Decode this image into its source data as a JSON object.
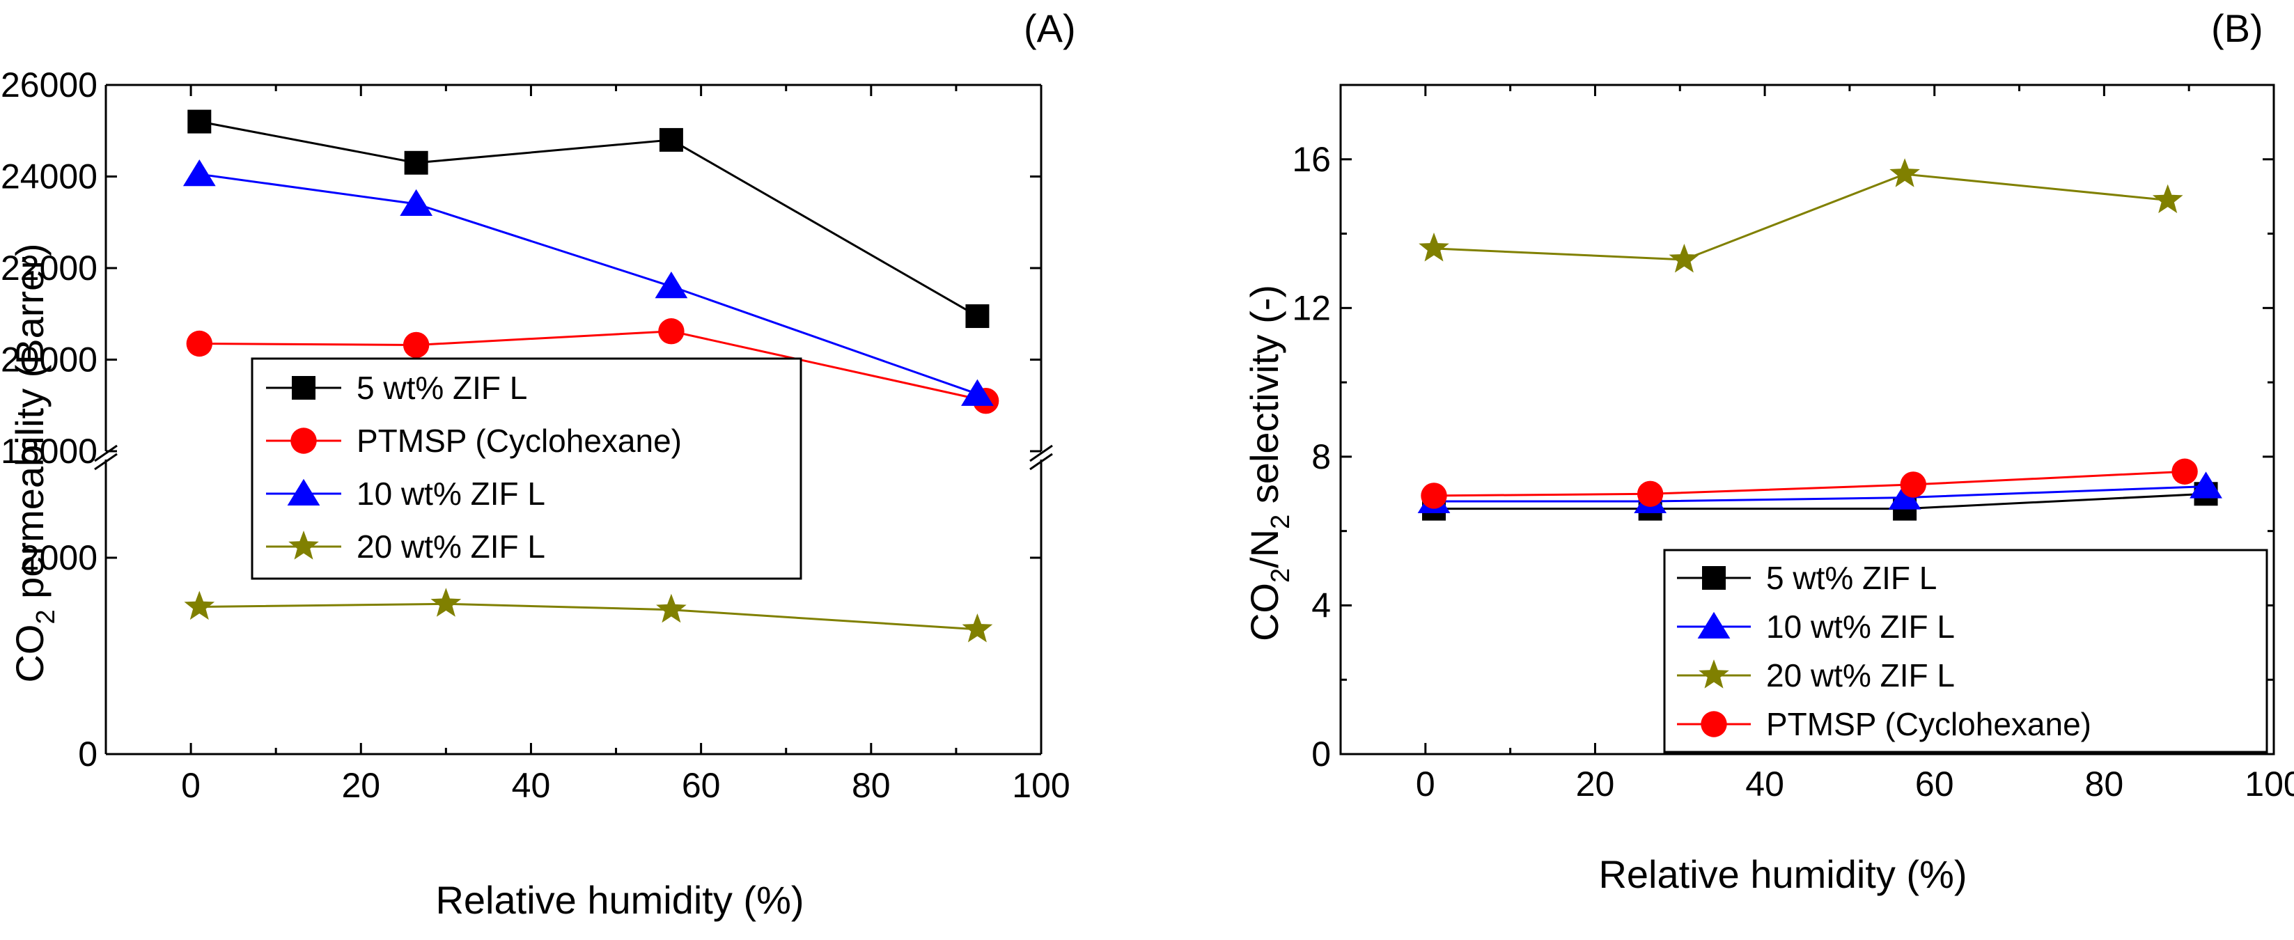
{
  "chart_data": [
    {
      "type": "line",
      "panel_label": "(A)",
      "title": "",
      "xlabel": "Relative humidity (%)",
      "ylabel": {
        "prefix": "CO",
        "subscript": "2",
        "suffix": " permeability (Barrer)"
      },
      "xlim": [
        -10,
        100
      ],
      "xticks": [
        "0",
        "20",
        "40",
        "60",
        "80",
        "100"
      ],
      "y_axis_break": {
        "lower_range": [
          0,
          3000
        ],
        "upper_range": [
          18000,
          26000
        ]
      },
      "yticks_lower": [
        "0",
        "2000"
      ],
      "yticks_upper": [
        "18000",
        "20000",
        "22000",
        "24000",
        "26000"
      ],
      "legend_position": "lower-left of upper section",
      "series": [
        {
          "name": "5 wt% ZIF L",
          "color": "#000000",
          "marker": "square",
          "x": [
            1,
            26.5,
            56.5,
            92.5
          ],
          "y": [
            25200,
            24300,
            24800,
            20950
          ]
        },
        {
          "name": "PTMSP (Cyclohexane)",
          "color": "#ff0000",
          "marker": "circle",
          "x": [
            1,
            26.5,
            56.5,
            93.5
          ],
          "y": [
            20350,
            20320,
            20620,
            19100
          ]
        },
        {
          "name": "10 wt% ZIF L",
          "color": "#0000ff",
          "marker": "triangle",
          "x": [
            1,
            26.5,
            56.5,
            92.5
          ],
          "y": [
            24050,
            23400,
            21600,
            19250
          ]
        },
        {
          "name": "20 wt% ZIF L",
          "color": "#808000",
          "marker": "star",
          "x": [
            1,
            30,
            56.5,
            92.5
          ],
          "y": [
            1500,
            1530,
            1470,
            1270
          ]
        }
      ]
    },
    {
      "type": "line",
      "panel_label": "(B)",
      "title": "",
      "xlabel": "Relative humidity (%)",
      "ylabel": {
        "prefix": "CO",
        "subscript": "2",
        "middle": "/N",
        "subscript2": "2",
        "suffix": " selectivity (-)"
      },
      "xlim": [
        -10,
        100
      ],
      "ylim": [
        0,
        18
      ],
      "xticks": [
        "0",
        "20",
        "40",
        "60",
        "80",
        "100"
      ],
      "yticks": [
        "0",
        "4",
        "8",
        "12",
        "16"
      ],
      "legend_position": "lower-right",
      "series": [
        {
          "name": "5 wt% ZIF L",
          "color": "#000000",
          "marker": "square",
          "x": [
            1,
            26.5,
            56.5,
            92
          ],
          "y": [
            6.6,
            6.6,
            6.6,
            7.0
          ]
        },
        {
          "name": "10 wt% ZIF L",
          "color": "#0000ff",
          "marker": "triangle",
          "x": [
            1,
            26.5,
            56.5,
            92
          ],
          "y": [
            6.8,
            6.8,
            6.9,
            7.2
          ]
        },
        {
          "name": "20 wt% ZIF L",
          "color": "#808000",
          "marker": "star",
          "x": [
            1,
            30.5,
            56.5,
            87.5
          ],
          "y": [
            13.6,
            13.3,
            15.6,
            14.9
          ]
        },
        {
          "name": "PTMSP (Cyclohexane)",
          "color": "#ff0000",
          "marker": "circle",
          "x": [
            1,
            26.5,
            57.5,
            89.5
          ],
          "y": [
            6.95,
            7.0,
            7.25,
            7.6
          ]
        }
      ]
    }
  ]
}
